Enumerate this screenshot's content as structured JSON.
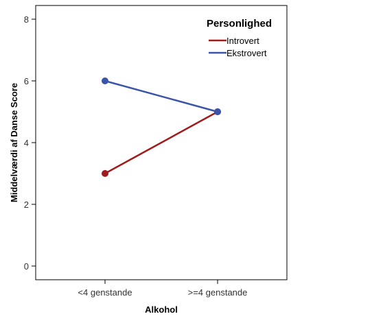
{
  "chart_data": {
    "type": "line",
    "categories": [
      "<4 genstande",
      ">=4 genstande"
    ],
    "series": [
      {
        "name": "Introvert",
        "values": [
          3,
          5
        ],
        "color": "#a01b1b"
      },
      {
        "name": "Ekstrovert",
        "values": [
          6,
          5
        ],
        "color": "#3a55a8"
      }
    ],
    "xlabel": "Alkohol",
    "ylabel": "Middelværdi af Danse Score",
    "ylim": [
      0,
      8
    ],
    "yticks": [
      0,
      2,
      4,
      6,
      8
    ],
    "legend_title": "Personlighed",
    "legend_position": "top-right",
    "grid": false
  }
}
